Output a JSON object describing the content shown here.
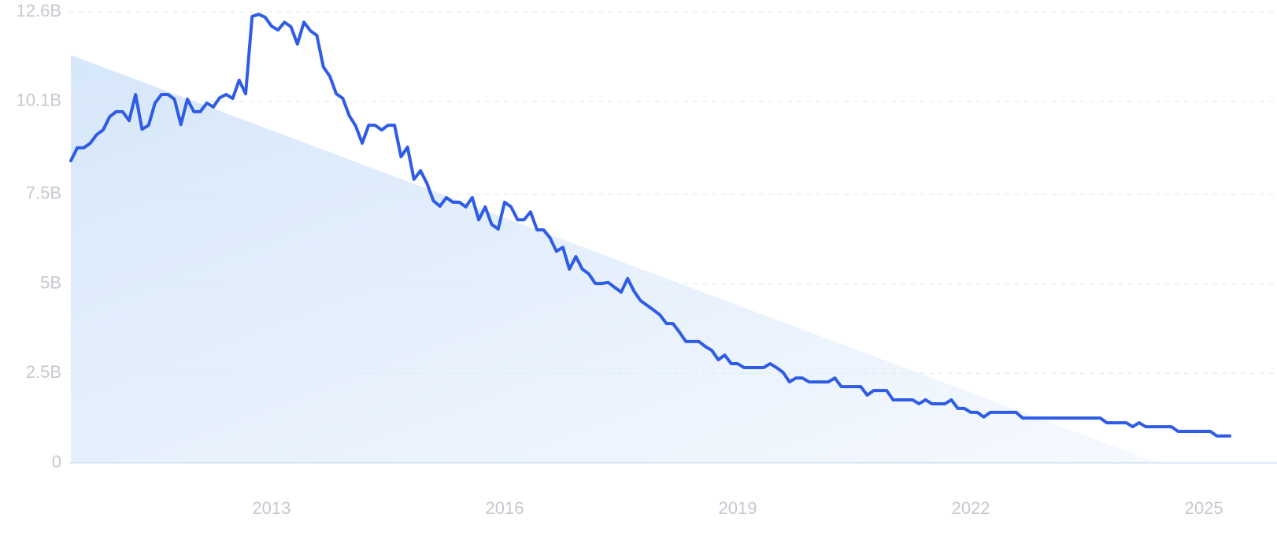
{
  "chart_data": {
    "type": "line",
    "color": "#2f5ce6",
    "grid": true,
    "ylim": [
      0,
      12.6
    ],
    "yticks": [
      0,
      {
        "value": 2.5,
        "label": "2.5B"
      },
      {
        "value": 5,
        "label": "5B"
      },
      {
        "value": 7.5,
        "label": "7.5B"
      },
      {
        "value": 10.1,
        "label": "10.1B"
      },
      {
        "value": 12.6,
        "label": "12.6B"
      }
    ],
    "xlim": [
      2010.417,
      2025.333
    ],
    "xticks": [
      2013,
      2016,
      2019,
      2022,
      2025
    ],
    "x": [
      2010.417,
      2010.5,
      2010.583,
      2010.667,
      2010.75,
      2010.833,
      2010.917,
      2011.0,
      2011.083,
      2011.167,
      2011.25,
      2011.333,
      2011.417,
      2011.5,
      2011.583,
      2011.667,
      2011.75,
      2011.833,
      2011.917,
      2012.0,
      2012.083,
      2012.167,
      2012.25,
      2012.333,
      2012.417,
      2012.5,
      2012.583,
      2012.667,
      2012.75,
      2012.833,
      2012.917,
      2013.0,
      2013.083,
      2013.167,
      2013.25,
      2013.333,
      2013.417,
      2013.5,
      2013.583,
      2013.667,
      2013.75,
      2013.833,
      2013.917,
      2014.0,
      2014.083,
      2014.167,
      2014.25,
      2014.333,
      2014.417,
      2014.5,
      2014.583,
      2014.667,
      2014.75,
      2014.833,
      2014.917,
      2015.0,
      2015.083,
      2015.167,
      2015.25,
      2015.333,
      2015.417,
      2015.5,
      2015.583,
      2015.667,
      2015.75,
      2015.833,
      2015.917,
      2016.0,
      2016.083,
      2016.167,
      2016.25,
      2016.333,
      2016.417,
      2016.5,
      2016.583,
      2016.667,
      2016.75,
      2016.833,
      2016.917,
      2017.0,
      2017.083,
      2017.167,
      2017.25,
      2017.333,
      2017.417,
      2017.5,
      2017.583,
      2017.667,
      2017.75,
      2017.833,
      2017.917,
      2018.0,
      2018.083,
      2018.167,
      2018.25,
      2018.333,
      2018.417,
      2018.5,
      2018.583,
      2018.667,
      2018.75,
      2018.833,
      2018.917,
      2019.0,
      2019.083,
      2019.167,
      2019.25,
      2019.333,
      2019.417,
      2019.5,
      2019.583,
      2019.667,
      2019.75,
      2019.833,
      2019.917,
      2020.0,
      2020.083,
      2020.167,
      2020.25,
      2020.333,
      2020.417,
      2020.5,
      2020.583,
      2020.667,
      2020.75,
      2020.833,
      2020.917,
      2021.0,
      2021.083,
      2021.167,
      2021.25,
      2021.333,
      2021.417,
      2021.5,
      2021.583,
      2021.667,
      2021.75,
      2021.833,
      2021.917,
      2022.0,
      2022.083,
      2022.167,
      2022.25,
      2022.333,
      2022.417,
      2022.5,
      2022.583,
      2022.667,
      2022.75,
      2022.833,
      2022.917,
      2023.0,
      2023.083,
      2023.167,
      2023.25,
      2023.333,
      2023.417,
      2023.5,
      2023.583,
      2023.667,
      2023.75,
      2023.833,
      2023.917,
      2024.0,
      2024.083,
      2024.167,
      2024.25,
      2024.333,
      2024.417,
      2024.5,
      2024.583,
      2024.667,
      2024.75,
      2024.833,
      2024.917,
      2025.0,
      2025.083,
      2025.167,
      2025.25,
      2025.333
    ],
    "values": [
      8.44,
      8.8,
      8.8,
      8.93,
      9.17,
      9.3,
      9.67,
      9.81,
      9.81,
      9.56,
      10.29,
      9.32,
      9.43,
      10.05,
      10.29,
      10.29,
      10.16,
      9.45,
      10.16,
      9.81,
      9.81,
      10.05,
      9.94,
      10.2,
      10.29,
      10.18,
      10.69,
      10.31,
      12.47,
      12.53,
      12.45,
      12.2,
      12.09,
      12.31,
      12.18,
      11.7,
      12.31,
      12.07,
      11.94,
      11.06,
      10.8,
      10.31,
      10.18,
      9.7,
      9.41,
      8.93,
      9.43,
      9.43,
      9.3,
      9.43,
      9.43,
      8.55,
      8.82,
      7.92,
      8.16,
      7.81,
      7.32,
      7.17,
      7.41,
      7.28,
      7.28,
      7.15,
      7.41,
      6.79,
      7.15,
      6.66,
      6.53,
      7.28,
      7.15,
      6.79,
      6.79,
      7.01,
      6.51,
      6.51,
      6.29,
      5.91,
      6.02,
      5.41,
      5.76,
      5.41,
      5.28,
      5.01,
      5.01,
      5.04,
      4.9,
      4.77,
      5.15,
      4.79,
      4.53,
      4.4,
      4.27,
      4.13,
      3.89,
      3.89,
      3.65,
      3.39,
      3.39,
      3.39,
      3.25,
      3.14,
      2.88,
      3.01,
      2.77,
      2.77,
      2.66,
      2.66,
      2.66,
      2.66,
      2.77,
      2.66,
      2.53,
      2.26,
      2.37,
      2.37,
      2.26,
      2.26,
      2.26,
      2.26,
      2.37,
      2.13,
      2.13,
      2.13,
      2.13,
      1.89,
      2.02,
      2.02,
      2.02,
      1.76,
      1.76,
      1.76,
      1.76,
      1.65,
      1.76,
      1.65,
      1.65,
      1.65,
      1.76,
      1.52,
      1.52,
      1.41,
      1.41,
      1.28,
      1.41,
      1.41,
      1.41,
      1.41,
      1.41,
      1.25,
      1.25,
      1.25,
      1.25,
      1.25,
      1.25,
      1.25,
      1.25,
      1.25,
      1.25,
      1.25,
      1.25,
      1.25,
      1.12,
      1.12,
      1.12,
      1.12,
      1.01,
      1.12,
      1.01,
      1.01,
      1.01,
      1.01,
      1.01,
      0.88,
      0.88,
      0.88,
      0.88,
      0.88,
      0.88,
      0.75,
      0.75,
      0.75
    ],
    "trend": {
      "x": [
        2010.417,
        2024.41
      ],
      "values": [
        11.39,
        0
      ],
      "color": "#d9e8fa"
    }
  }
}
